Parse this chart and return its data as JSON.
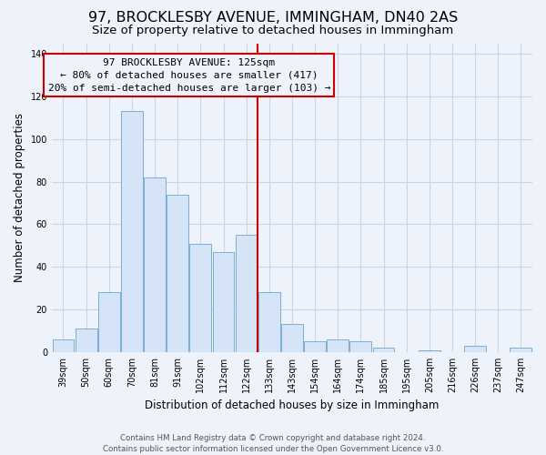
{
  "title": "97, BROCKLESBY AVENUE, IMMINGHAM, DN40 2AS",
  "subtitle": "Size of property relative to detached houses in Immingham",
  "xlabel": "Distribution of detached houses by size in Immingham",
  "ylabel": "Number of detached properties",
  "categories": [
    "39sqm",
    "50sqm",
    "60sqm",
    "70sqm",
    "81sqm",
    "91sqm",
    "102sqm",
    "112sqm",
    "122sqm",
    "133sqm",
    "143sqm",
    "154sqm",
    "164sqm",
    "174sqm",
    "185sqm",
    "195sqm",
    "205sqm",
    "216sqm",
    "226sqm",
    "237sqm",
    "247sqm"
  ],
  "values": [
    6,
    11,
    28,
    113,
    82,
    74,
    51,
    47,
    55,
    28,
    13,
    5,
    6,
    5,
    2,
    0,
    1,
    0,
    3,
    0,
    2
  ],
  "bar_color": "#d6e4f7",
  "bar_edge_color": "#7bafd4",
  "vline_x_index": 8.5,
  "vline_color": "#cc0000",
  "ylim": [
    0,
    145
  ],
  "yticks": [
    0,
    20,
    40,
    60,
    80,
    100,
    120,
    140
  ],
  "annotation_title": "97 BROCKLESBY AVENUE: 125sqm",
  "annotation_line1": "← 80% of detached houses are smaller (417)",
  "annotation_line2": "20% of semi-detached houses are larger (103) →",
  "annotation_box_edge": "#cc0000",
  "footer_line1": "Contains HM Land Registry data © Crown copyright and database right 2024.",
  "footer_line2": "Contains public sector information licensed under the Open Government Licence v3.0.",
  "background_color": "#eef2fa",
  "grid_color": "#c8d4e8",
  "title_fontsize": 11.5,
  "subtitle_fontsize": 9.5,
  "axis_label_fontsize": 8.5,
  "tick_fontsize": 7,
  "annotation_fontsize": 8,
  "footer_fontsize": 6.2
}
